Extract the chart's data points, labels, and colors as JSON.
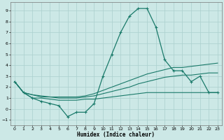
{
  "xlabel": "Humidex (Indice chaleur)",
  "x_values": [
    0,
    1,
    2,
    3,
    4,
    5,
    6,
    7,
    8,
    9,
    10,
    11,
    12,
    13,
    14,
    15,
    16,
    17,
    18,
    19,
    20,
    21,
    22,
    23
  ],
  "line1": [
    2.5,
    1.5,
    1.0,
    0.7,
    0.5,
    0.3,
    -0.7,
    -0.3,
    -0.3,
    0.5,
    3.0,
    5.0,
    7.0,
    8.5,
    9.2,
    9.2,
    7.5,
    4.5,
    3.5,
    3.5,
    2.5,
    3.0,
    1.5,
    1.5
  ],
  "line2": [
    2.5,
    1.5,
    1.3,
    1.2,
    1.1,
    1.1,
    1.1,
    1.1,
    1.2,
    1.4,
    1.7,
    2.0,
    2.3,
    2.6,
    2.9,
    3.2,
    3.4,
    3.6,
    3.8,
    3.8,
    3.9,
    4.0,
    4.1,
    4.2
  ],
  "line3": [
    2.5,
    1.5,
    1.3,
    1.1,
    1.1,
    1.0,
    1.0,
    1.0,
    1.1,
    1.2,
    1.4,
    1.6,
    1.8,
    2.0,
    2.3,
    2.5,
    2.7,
    2.9,
    3.0,
    3.1,
    3.1,
    3.2,
    3.3,
    3.3
  ],
  "line4": [
    2.5,
    1.5,
    1.0,
    1.0,
    0.9,
    0.8,
    0.8,
    0.8,
    0.9,
    0.9,
    1.0,
    1.1,
    1.2,
    1.3,
    1.4,
    1.5,
    1.5,
    1.5,
    1.5,
    1.5,
    1.5,
    1.5,
    1.5,
    1.5
  ],
  "color": "#1a7a6a",
  "bg_color": "#cce8e6",
  "grid_color": "#aacfcd",
  "ylim": [
    -1.5,
    9.8
  ],
  "xlim": [
    -0.5,
    23.5
  ],
  "yticks": [
    -1,
    0,
    1,
    2,
    3,
    4,
    5,
    6,
    7,
    8,
    9
  ],
  "xticks": [
    0,
    1,
    2,
    3,
    4,
    5,
    6,
    7,
    8,
    9,
    10,
    11,
    12,
    13,
    14,
    15,
    16,
    17,
    18,
    19,
    20,
    21,
    22,
    23
  ]
}
